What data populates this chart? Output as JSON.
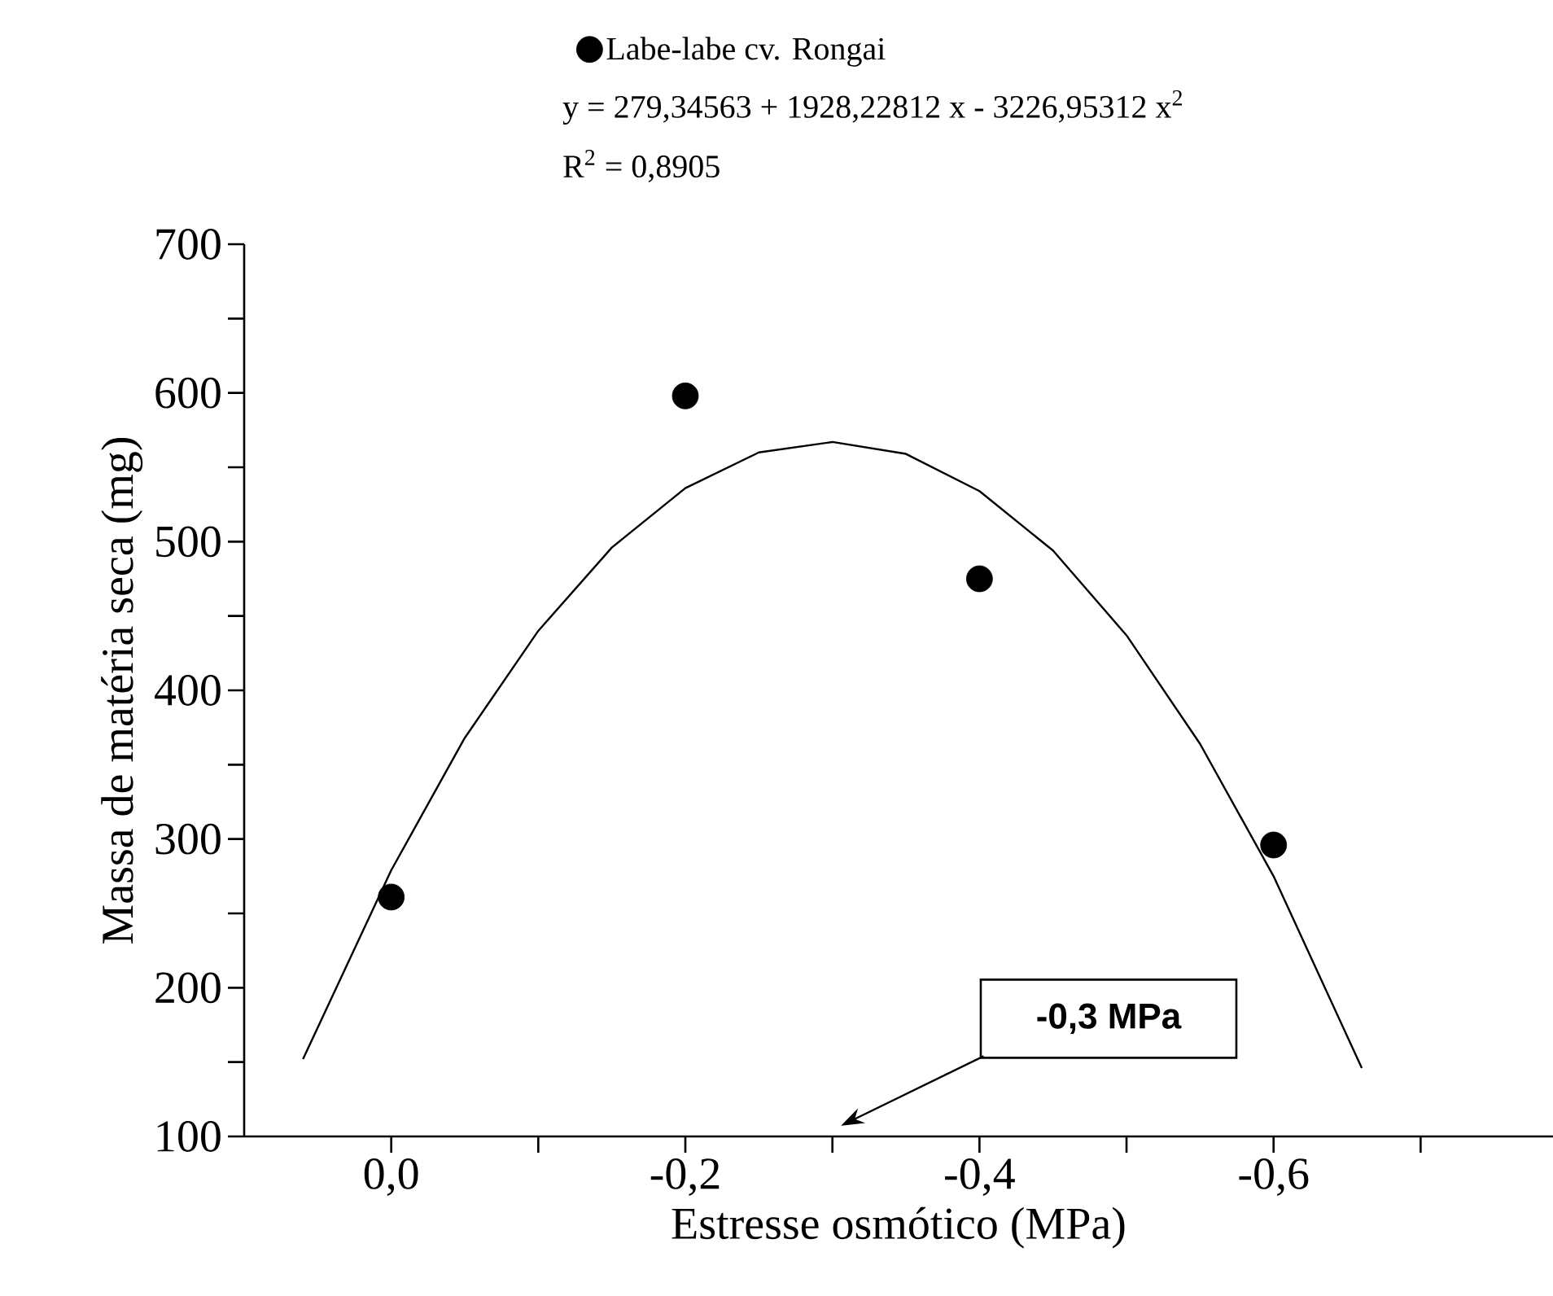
{
  "chart_data": {
    "type": "scatter",
    "xlabel": "Estresse osmótico (MPa)",
    "ylabel": "Massa de matéria seca (mg)",
    "xlim": [
      0.1,
      -0.79
    ],
    "ylim": [
      100,
      700
    ],
    "xticks": [
      {
        "value": 0,
        "label": "0,0"
      },
      {
        "value": -0.1,
        "label": null
      },
      {
        "value": -0.2,
        "label": "-0,2"
      },
      {
        "value": -0.3,
        "label": null
      },
      {
        "value": -0.4,
        "label": "-0,4"
      },
      {
        "value": -0.5,
        "label": null
      },
      {
        "value": -0.6,
        "label": "-0,6"
      },
      {
        "value": -0.7,
        "label": null
      }
    ],
    "yticks": [
      100,
      {
        "value": 150,
        "label": null
      },
      200,
      {
        "value": 250,
        "label": null
      },
      300,
      {
        "value": 350,
        "label": null
      },
      400,
      {
        "value": 450,
        "label": null
      },
      500,
      {
        "value": 550,
        "label": null
      },
      600,
      {
        "value": 650,
        "label": null
      },
      700
    ],
    "series": [
      {
        "name": "Labe-labe cv. Rongai",
        "color": "#000000",
        "marker": "circle",
        "x": [
          0,
          -0.2,
          -0.4,
          -0.6
        ],
        "values": [
          261,
          598,
          475,
          296
        ]
      },
      {
        "type": "line",
        "color": "#000000",
        "marker": "none",
        "line_style": "solid",
        "x": [
          0.06,
          0,
          -0.05,
          -0.1,
          -0.15,
          -0.2,
          -0.25,
          -0.3,
          -0.35,
          -0.4,
          -0.45,
          -0.5,
          -0.55,
          -0.6,
          -0.66
        ],
        "values": [
          152,
          279,
          368,
          440,
          496,
          536,
          560,
          567,
          559,
          534,
          494,
          437,
          364,
          275,
          146
        ]
      }
    ],
    "legend": "top",
    "grid": false,
    "annotations": [
      "y = 279,34563 + 1928,22812 x - 3226,95312 x$^{2}$",
      "R$^{2}$ = 0,8905",
      "-0,3 MPa"
    ]
  }
}
